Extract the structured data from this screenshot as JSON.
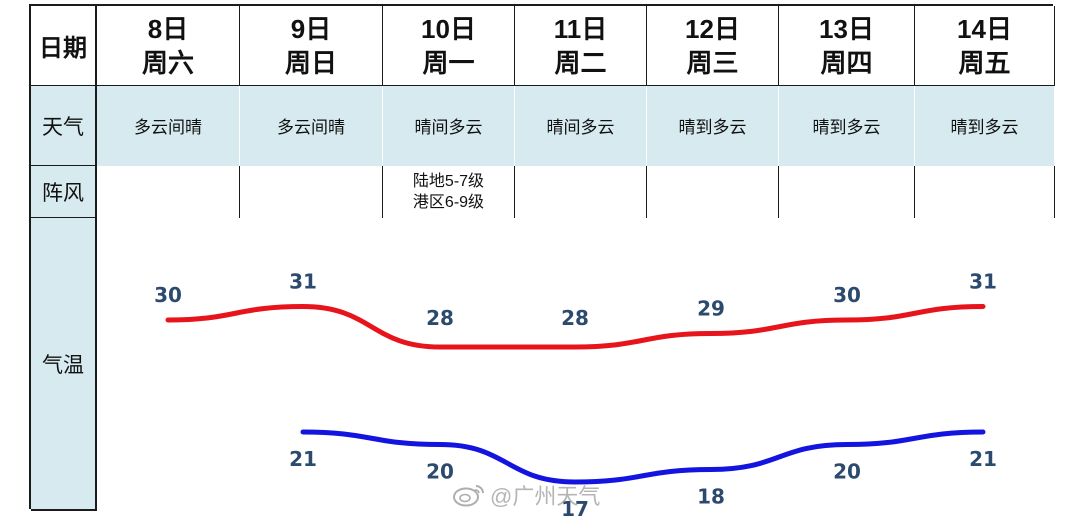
{
  "table": {
    "header_label": "日期",
    "weather_label": "天气",
    "gust_label": "阵风",
    "temp_label": "气温",
    "days": [
      {
        "date": "8日",
        "weekday": "周六",
        "weather": "多云间晴",
        "gust_line1": "",
        "gust_line2": ""
      },
      {
        "date": "9日",
        "weekday": "周日",
        "weather": "多云间晴",
        "gust_line1": "",
        "gust_line2": ""
      },
      {
        "date": "10日",
        "weekday": "周一",
        "weather": "晴间多云",
        "gust_line1": "陆地5-7级",
        "gust_line2": "港区6-9级"
      },
      {
        "date": "11日",
        "weekday": "周二",
        "weather": "晴间多云",
        "gust_line1": "",
        "gust_line2": ""
      },
      {
        "date": "12日",
        "weekday": "周三",
        "weather": "晴到多云",
        "gust_line1": "",
        "gust_line2": ""
      },
      {
        "date": "13日",
        "weekday": "周四",
        "weather": "晴到多云",
        "gust_line1": "",
        "gust_line2": ""
      },
      {
        "date": "14日",
        "weekday": "周五",
        "weather": "晴到多云",
        "gust_line1": "",
        "gust_line2": ""
      }
    ]
  },
  "chart_data": {
    "type": "line",
    "categories": [
      "8日",
      "9日",
      "10日",
      "11日",
      "12日",
      "13日",
      "14日"
    ],
    "series": [
      {
        "color": "#e8141c",
        "values": [
          30,
          31,
          28,
          28,
          29,
          30,
          31
        ]
      },
      {
        "color": "#1414e0",
        "values": [
          null,
          21,
          20,
          17,
          18,
          20,
          21
        ]
      }
    ]
  },
  "watermark": {
    "icon": "weibo-icon",
    "text": "@广州天气"
  }
}
